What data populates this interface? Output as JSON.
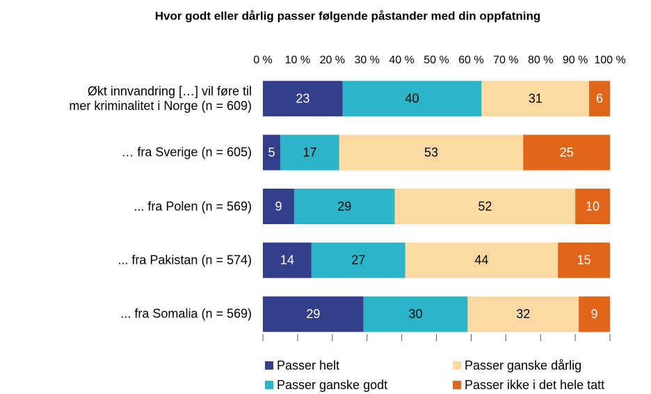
{
  "chart_data": {
    "type": "stacked_barh",
    "title": "Hvor godt eller dårlig passer følgende påstander med din oppfatning",
    "categories": [
      "Økt innvandring […] vil føre til\nmer kriminalitet i Norge (n = 609)",
      "… fra Sverige (n = 605)",
      "... fra Polen (n = 569)",
      "... fra Pakistan (n = 574)",
      "... fra Somalia (n = 569)"
    ],
    "series": [
      {
        "name": "Passer helt",
        "color": "#343f8c",
        "values": [
          23,
          5,
          9,
          14,
          29
        ]
      },
      {
        "name": "Passer ganske godt",
        "color": "#2cb5c9",
        "values": [
          40,
          17,
          29,
          27,
          30
        ]
      },
      {
        "name": "Passer ganske dårlig",
        "color": "#fcd9a3",
        "values": [
          31,
          53,
          52,
          44,
          32
        ]
      },
      {
        "name": "Passer ikke i det hele tatt",
        "color": "#e0661a",
        "values": [
          6,
          25,
          10,
          15,
          9
        ]
      }
    ],
    "xlim": [
      0,
      100
    ],
    "xticks": [
      {
        "value": 0,
        "label": "0 %"
      },
      {
        "value": 10,
        "label": "10 %"
      },
      {
        "value": 20,
        "label": "20 %"
      },
      {
        "value": 30,
        "label": "30 %"
      },
      {
        "value": 40,
        "label": "40 %"
      },
      {
        "value": 50,
        "label": "50 %"
      },
      {
        "value": 60,
        "label": "60 %"
      },
      {
        "value": 70,
        "label": "70 %"
      },
      {
        "value": 80,
        "label": "80 %"
      },
      {
        "value": 90,
        "label": "90 %"
      },
      {
        "value": 100,
        "label": "100 %"
      }
    ],
    "legend": "bottom"
  }
}
